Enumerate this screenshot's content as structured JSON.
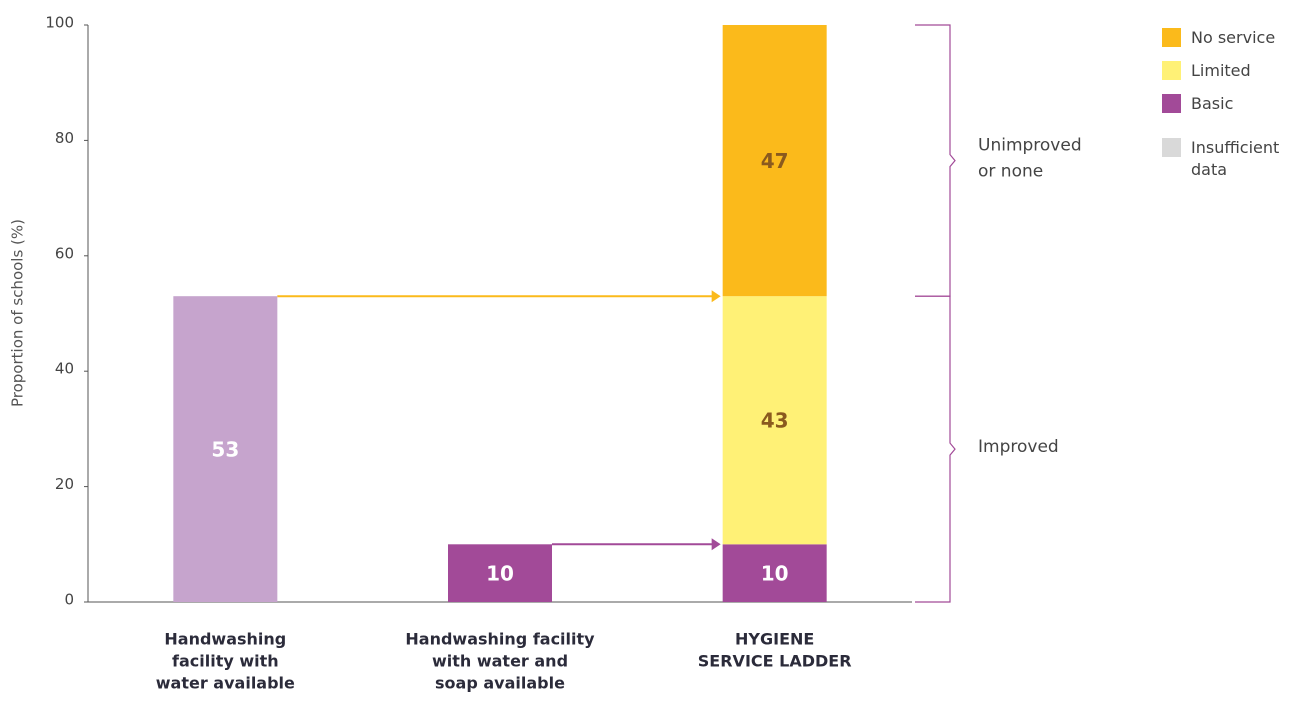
{
  "chart_data": {
    "type": "stacked-bar",
    "y_label": "Proportion of schools (%)",
    "categories": [
      [
        "Handwashing",
        "facility with",
        "water available"
      ],
      [
        "Handwashing facility",
        "with water and",
        "soap available"
      ],
      [
        "HYGIENE",
        "SERVICE LADDER"
      ]
    ],
    "series": [
      {
        "name": "No service",
        "color": "#fbba1b",
        "label_color": "#8a5a1e",
        "values": [
          null,
          null,
          47
        ]
      },
      {
        "name": "Limited",
        "color": "#fff176",
        "label_color": "#8a5a1e",
        "values": [
          null,
          null,
          43
        ]
      },
      {
        "name": "Basic",
        "color": "#a24a98",
        "label_color": "#ffffff",
        "values": [
          null,
          10,
          10
        ]
      },
      {
        "name": "Insufficient data",
        "color": "#d9d9d9",
        "label_color": "#444444",
        "values": [
          null,
          null,
          null
        ]
      },
      {
        "color": "#c6a4cd",
        "label_color": "#ffffff",
        "values": [
          53,
          null,
          null
        ]
      }
    ],
    "ylim": [
      0,
      100
    ],
    "yticks": [
      0,
      20,
      40,
      60,
      80,
      100
    ],
    "arrows": [
      {
        "from": 0,
        "to": 2,
        "value": 53,
        "color": "#fbba1b"
      },
      {
        "from": 1,
        "to": 2,
        "value": 10,
        "color": "#a24a98"
      }
    ],
    "brackets": [
      {
        "text": [
          "Unimproved",
          "or none"
        ],
        "from": 53,
        "to": 100,
        "color": "#a24a98"
      },
      {
        "text": [
          "Improved"
        ],
        "from": 0,
        "to": 53,
        "color": "#a24a98"
      }
    ]
  }
}
